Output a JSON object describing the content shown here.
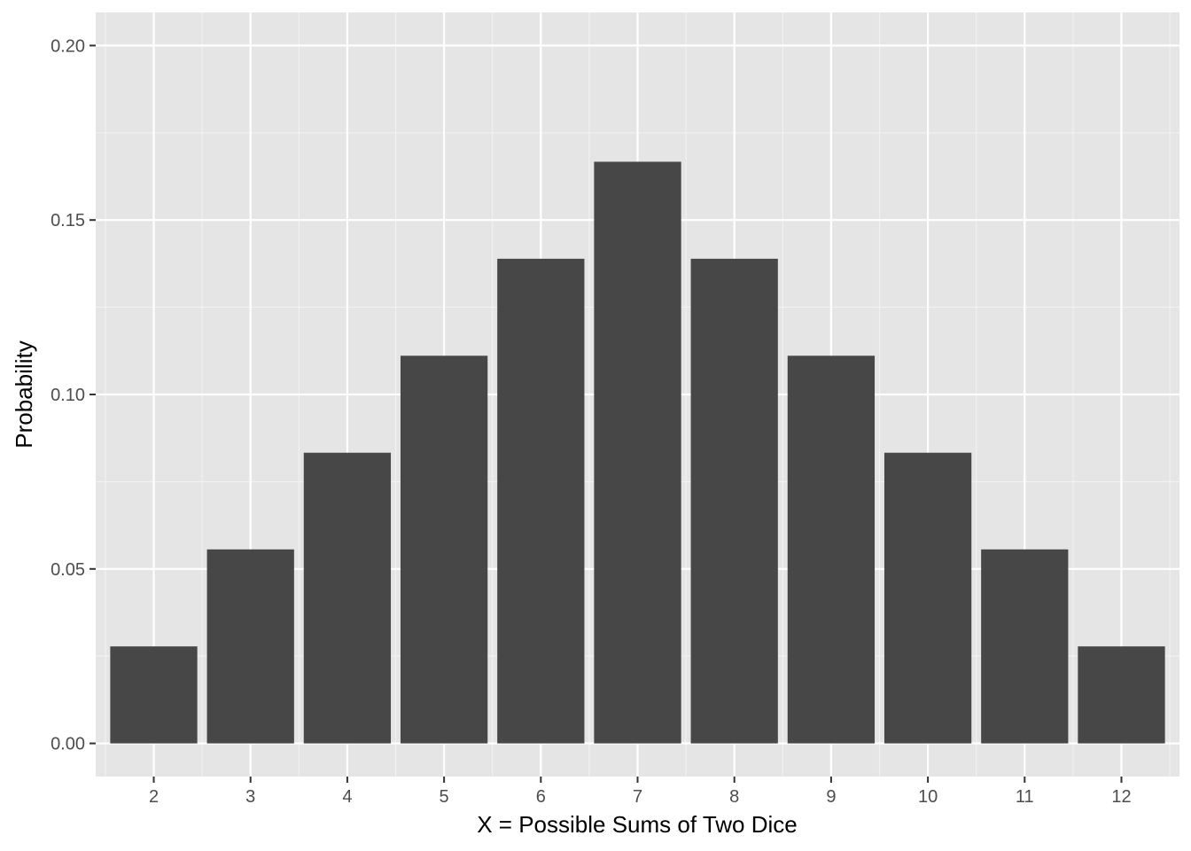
{
  "chart_data": {
    "type": "bar",
    "categories": [
      "2",
      "3",
      "4",
      "5",
      "6",
      "7",
      "8",
      "9",
      "10",
      "11",
      "12"
    ],
    "values": [
      0.0278,
      0.0556,
      0.0833,
      0.1111,
      0.1389,
      0.1667,
      0.1389,
      0.1111,
      0.0833,
      0.0556,
      0.0278
    ],
    "title": "",
    "xlabel": "X = Possible Sums of Two Dice",
    "ylabel": "Probability",
    "ylim": [
      -0.0095,
      0.2095
    ],
    "yticks": [
      "0.00",
      "0.05",
      "0.10",
      "0.15",
      "0.20"
    ],
    "grid": true,
    "legend": "none",
    "colors": {
      "bar": "#474747",
      "panel": "#e5e5e5",
      "grid_major": "#ffffff",
      "grid_minor": "#f2f2f2",
      "tick_text": "#4d4d4d",
      "tick_mark": "#333333"
    }
  }
}
